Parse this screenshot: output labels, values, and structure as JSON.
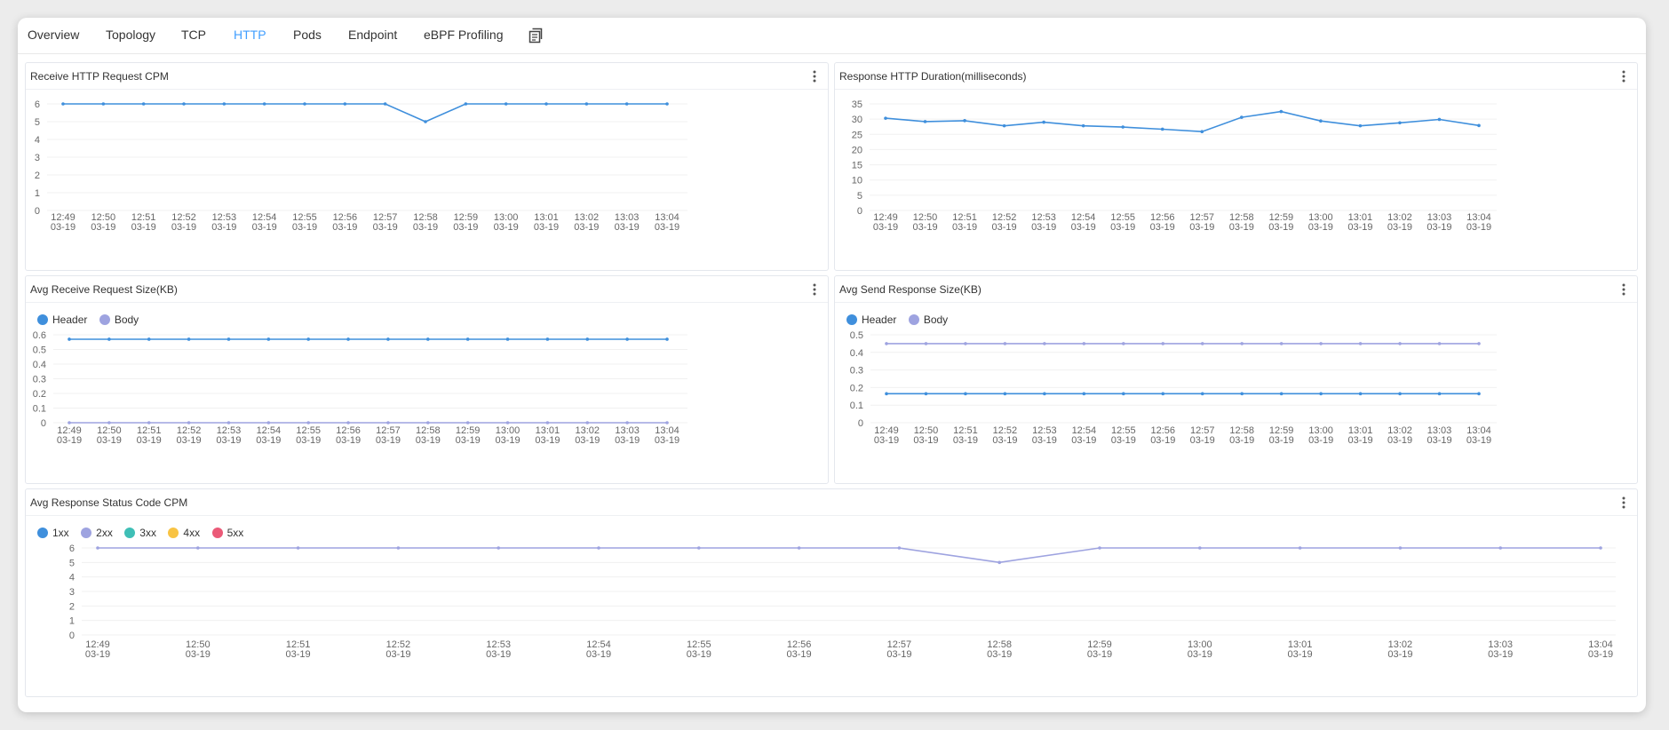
{
  "tabs": [
    {
      "label": "Overview",
      "active": false
    },
    {
      "label": "Topology",
      "active": false
    },
    {
      "label": "TCP",
      "active": false
    },
    {
      "label": "HTTP",
      "active": true
    },
    {
      "label": "Pods",
      "active": false
    },
    {
      "label": "Endpoint",
      "active": false
    },
    {
      "label": "eBPF Profiling",
      "active": false
    }
  ],
  "tab_icon": "copy-document-icon",
  "colors": {
    "accent": "#409eff",
    "line_blue": "#3f8fdc",
    "line_purple": "#9ea3e0",
    "cyan": "#3fbfb6",
    "yellow": "#f8c343",
    "red": "#eb5a78"
  },
  "panels": {
    "p1": {
      "title": "Receive HTTP Request CPM"
    },
    "p2": {
      "title": "Response HTTP Duration(milliseconds)"
    },
    "p3": {
      "title": "Avg Receive Request Size(KB)"
    },
    "p4": {
      "title": "Avg Send Response Size(KB)"
    },
    "p5": {
      "title": "Avg Response Status Code CPM"
    }
  },
  "chart_data": [
    {
      "id": "p1",
      "type": "line",
      "title": "Receive HTTP Request CPM",
      "x": [
        "12:49\n03-19",
        "12:50\n03-19",
        "12:51\n03-19",
        "12:52\n03-19",
        "12:53\n03-19",
        "12:54\n03-19",
        "12:55\n03-19",
        "12:56\n03-19",
        "12:57\n03-19",
        "12:58\n03-19",
        "12:59\n03-19",
        "13:00\n03-19",
        "13:01\n03-19",
        "13:02\n03-19",
        "13:03\n03-19",
        "13:04\n03-19"
      ],
      "ylim": [
        0,
        6
      ],
      "yticks": [
        0,
        1,
        2,
        3,
        4,
        5,
        6
      ],
      "series": [
        {
          "color": "#3f8fdc",
          "values": [
            6,
            6,
            6,
            6,
            6,
            6,
            6,
            6,
            6,
            5,
            6,
            6,
            6,
            6,
            6,
            6
          ]
        }
      ]
    },
    {
      "id": "p2",
      "type": "line",
      "title": "Response HTTP Duration(milliseconds)",
      "x": [
        "12:49\n03-19",
        "12:50\n03-19",
        "12:51\n03-19",
        "12:52\n03-19",
        "12:53\n03-19",
        "12:54\n03-19",
        "12:55\n03-19",
        "12:56\n03-19",
        "12:57\n03-19",
        "12:58\n03-19",
        "12:59\n03-19",
        "13:00\n03-19",
        "13:01\n03-19",
        "13:02\n03-19",
        "13:03\n03-19",
        "13:04\n03-19"
      ],
      "ylim": [
        0,
        35
      ],
      "yticks": [
        0,
        5,
        10,
        15,
        20,
        25,
        30,
        35
      ],
      "series": [
        {
          "color": "#3f8fdc",
          "values": [
            30.3,
            29.2,
            29.5,
            27.8,
            29,
            27.8,
            27.4,
            26.7,
            25.9,
            30.6,
            32.5,
            29.4,
            27.8,
            28.8,
            29.9,
            27.9
          ]
        }
      ]
    },
    {
      "id": "p3",
      "type": "line",
      "title": "Avg Receive Request Size(KB)",
      "x": [
        "12:49\n03-19",
        "12:50\n03-19",
        "12:51\n03-19",
        "12:52\n03-19",
        "12:53\n03-19",
        "12:54\n03-19",
        "12:55\n03-19",
        "12:56\n03-19",
        "12:57\n03-19",
        "12:58\n03-19",
        "12:59\n03-19",
        "13:00\n03-19",
        "13:01\n03-19",
        "13:02\n03-19",
        "13:03\n03-19",
        "13:04\n03-19"
      ],
      "ylim": [
        0,
        0.6
      ],
      "yticks": [
        "0",
        "0.1",
        "0.2",
        "0.3",
        "0.4",
        "0.5",
        "0.6"
      ],
      "legend": [
        {
          "name": "Header",
          "color": "#3f8fdc"
        },
        {
          "name": "Body",
          "color": "#9ea3e0"
        }
      ],
      "series": [
        {
          "name": "Header",
          "color": "#3f8fdc",
          "values": [
            0.57,
            0.57,
            0.57,
            0.57,
            0.57,
            0.57,
            0.57,
            0.57,
            0.57,
            0.57,
            0.57,
            0.57,
            0.57,
            0.57,
            0.57,
            0.57
          ]
        },
        {
          "name": "Body",
          "color": "#9ea3e0",
          "values": [
            0,
            0,
            0,
            0,
            0,
            0,
            0,
            0,
            0,
            0,
            0,
            0,
            0,
            0,
            0,
            0
          ]
        }
      ]
    },
    {
      "id": "p4",
      "type": "line",
      "title": "Avg Send Response Size(KB)",
      "x": [
        "12:49\n03-19",
        "12:50\n03-19",
        "12:51\n03-19",
        "12:52\n03-19",
        "12:53\n03-19",
        "12:54\n03-19",
        "12:55\n03-19",
        "12:56\n03-19",
        "12:57\n03-19",
        "12:58\n03-19",
        "12:59\n03-19",
        "13:00\n03-19",
        "13:01\n03-19",
        "13:02\n03-19",
        "13:03\n03-19",
        "13:04\n03-19"
      ],
      "ylim": [
        0,
        0.5
      ],
      "yticks": [
        "0",
        "0.1",
        "0.2",
        "0.3",
        "0.4",
        "0.5"
      ],
      "legend": [
        {
          "name": "Header",
          "color": "#3f8fdc"
        },
        {
          "name": "Body",
          "color": "#9ea3e0"
        }
      ],
      "series": [
        {
          "name": "Header",
          "color": "#3f8fdc",
          "values": [
            0.165,
            0.165,
            0.165,
            0.165,
            0.165,
            0.165,
            0.165,
            0.165,
            0.165,
            0.165,
            0.165,
            0.165,
            0.165,
            0.165,
            0.165,
            0.165
          ]
        },
        {
          "name": "Body",
          "color": "#9ea3e0",
          "values": [
            0.45,
            0.45,
            0.45,
            0.45,
            0.45,
            0.45,
            0.45,
            0.45,
            0.45,
            0.45,
            0.45,
            0.45,
            0.45,
            0.45,
            0.45,
            0.45
          ]
        }
      ]
    },
    {
      "id": "p5",
      "type": "line",
      "title": "Avg Response Status Code CPM",
      "x": [
        "12:49\n03-19",
        "12:50\n03-19",
        "12:51\n03-19",
        "12:52\n03-19",
        "12:53\n03-19",
        "12:54\n03-19",
        "12:55\n03-19",
        "12:56\n03-19",
        "12:57\n03-19",
        "12:58\n03-19",
        "12:59\n03-19",
        "13:00\n03-19",
        "13:01\n03-19",
        "13:02\n03-19",
        "13:03\n03-19",
        "13:04\n03-19"
      ],
      "ylim": [
        0,
        6
      ],
      "yticks": [
        0,
        1,
        2,
        3,
        4,
        5,
        6
      ],
      "legend": [
        {
          "name": "1xx",
          "color": "#3f8fdc"
        },
        {
          "name": "2xx",
          "color": "#9ea3e0"
        },
        {
          "name": "3xx",
          "color": "#3fbfb6"
        },
        {
          "name": "4xx",
          "color": "#f8c343"
        },
        {
          "name": "5xx",
          "color": "#eb5a78"
        }
      ],
      "series": [
        {
          "name": "2xx",
          "color": "#9ea3e0",
          "values": [
            6,
            6,
            6,
            6,
            6,
            6,
            6,
            6,
            6,
            5,
            6,
            6,
            6,
            6,
            6,
            6
          ]
        }
      ]
    }
  ]
}
